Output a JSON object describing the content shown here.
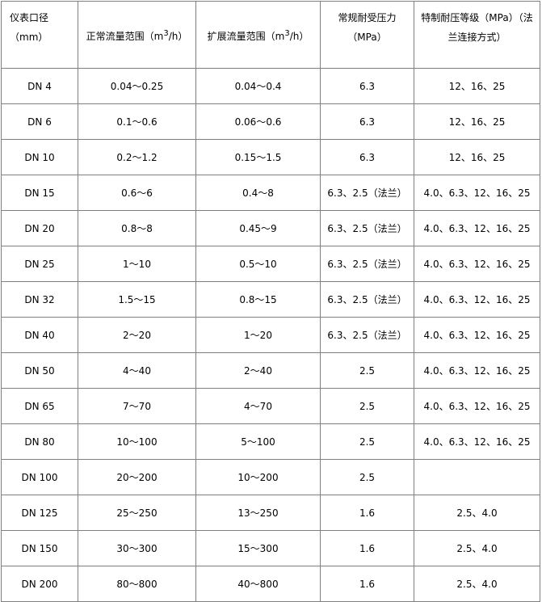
{
  "header": {
    "col1": "仪表口径（mm）",
    "col2_pre": "正常流量范围（m",
    "col2_sup": "3",
    "col2_post": "/h）",
    "col3_pre": "扩展流量范围（m",
    "col3_sup": "3",
    "col3_post": "/h）",
    "col4": "常规耐受压力（MPa）",
    "col5": "特制耐压等级（MPa）（法兰连接方式）"
  },
  "rows": [
    [
      "DN 4",
      "0.04～0.25",
      "0.04～0.4",
      "6.3",
      "12、16、25"
    ],
    [
      "DN 6",
      "0.1～0.6",
      "0.06～0.6",
      "6.3",
      "12、16、25"
    ],
    [
      "DN 10",
      "0.2～1.2",
      "0.15～1.5",
      "6.3",
      "12、16、25"
    ],
    [
      "DN 15",
      "0.6～6",
      "0.4～8",
      "6.3、2.5（法兰）",
      "4.0、6.3、12、16、25"
    ],
    [
      "DN 20",
      "0.8～8",
      "0.45～9",
      "6.3、2.5（法兰）",
      "4.0、6.3、12、16、25"
    ],
    [
      "DN 25",
      "1～10",
      "0.5～10",
      "6.3、2.5（法兰）",
      "4.0、6.3、12、16、25"
    ],
    [
      "DN 32",
      "1.5～15",
      "0.8～15",
      "6.3、2.5（法兰）",
      "4.0、6.3、12、16、25"
    ],
    [
      "DN 40",
      "2～20",
      "1～20",
      "6.3、2.5（法兰）",
      "4.0、6.3、12、16、25"
    ],
    [
      "DN 50",
      "4～40",
      "2～40",
      "2.5",
      "4.0、6.3、12、16、25"
    ],
    [
      "DN 65",
      "7～70",
      "4～70",
      "2.5",
      "4.0、6.3、12、16、25"
    ],
    [
      "DN 80",
      "10～100",
      "5～100",
      "2.5",
      "4.0、6.3、12、16、25"
    ],
    [
      "DN 100",
      "20～200",
      "10～200",
      "2.5",
      ""
    ],
    [
      "DN 125",
      "25～250",
      "13～250",
      "1.6",
      "2.5、4.0"
    ],
    [
      "DN 150",
      "30～300",
      "15～300",
      "1.6",
      "2.5、4.0"
    ],
    [
      "DN 200",
      "80～800",
      "40～800",
      "1.6",
      "2.5、4.0"
    ]
  ]
}
